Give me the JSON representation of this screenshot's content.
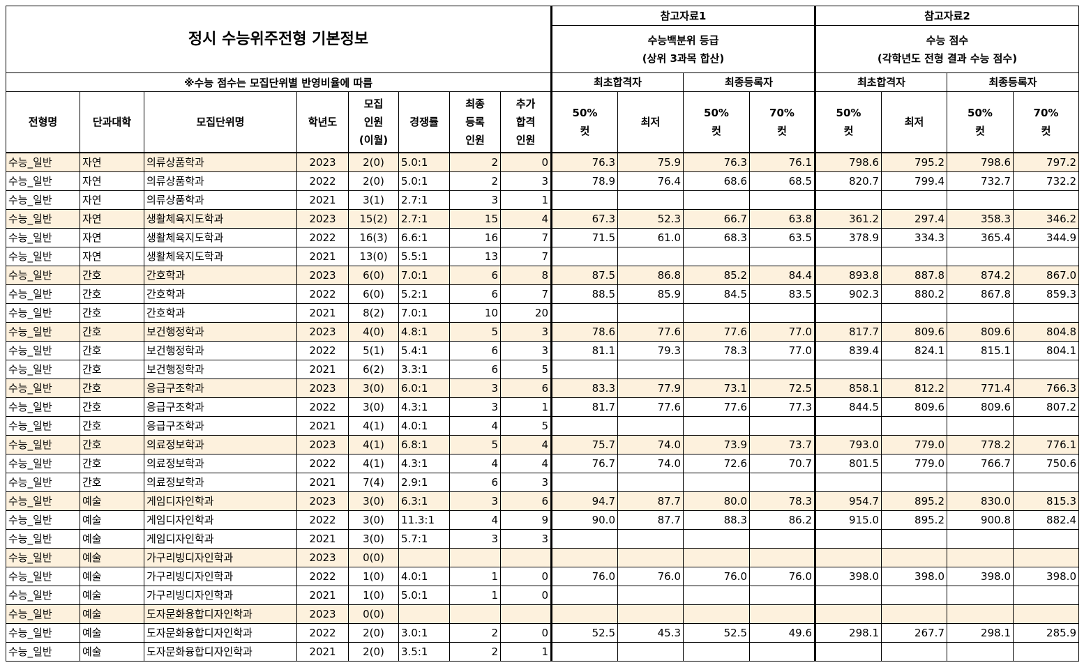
{
  "title": "정시 수능위주전형 기본정보",
  "note": "※수능 점수는 모집단위별 반영비율에 따름",
  "ref1": {
    "label": "참고자료1",
    "desc_line1": "수능백분위 등급",
    "desc_line2": "(상위 3과목 합산)"
  },
  "ref2": {
    "label": "참고자료2",
    "desc_line1": "수능 점수",
    "desc_line2": "(각학년도 전형 결과 수능 점수)"
  },
  "group": {
    "first": "최초합격자",
    "final": "최종등록자"
  },
  "columns": {
    "type": "전형명",
    "college": "단과대학",
    "unit": "모집단위명",
    "year": "학년도",
    "quota": [
      "모집",
      "인원",
      "(이월)"
    ],
    "rate": "경쟁률",
    "registered": [
      "최종",
      "등록",
      "인원"
    ],
    "added": [
      "추가",
      "합격",
      "인원"
    ],
    "cut50": [
      "50%",
      "컷"
    ],
    "min": "최저",
    "cut70": [
      "70%",
      "컷"
    ]
  },
  "rows": [
    {
      "hl": true,
      "cells": [
        "수능_일반",
        "자연",
        "의류상품학과",
        "2023",
        "2(0)",
        "5.0:1",
        "2",
        "0",
        "76.3",
        "75.9",
        "76.3",
        "76.1",
        "798.6",
        "795.2",
        "798.6",
        "797.2"
      ]
    },
    {
      "hl": false,
      "cells": [
        "수능_일반",
        "자연",
        "의류상품학과",
        "2022",
        "2(0)",
        "5.0:1",
        "2",
        "3",
        "78.9",
        "76.4",
        "68.6",
        "68.5",
        "820.7",
        "799.4",
        "732.7",
        "732.2"
      ]
    },
    {
      "hl": false,
      "cells": [
        "수능_일반",
        "자연",
        "의류상품학과",
        "2021",
        "3(1)",
        "2.7:1",
        "3",
        "1",
        "",
        "",
        "",
        "",
        "",
        "",
        "",
        ""
      ]
    },
    {
      "hl": true,
      "cells": [
        "수능_일반",
        "자연",
        "생활체육지도학과",
        "2023",
        "15(2)",
        "2.7:1",
        "15",
        "4",
        "67.3",
        "52.3",
        "66.7",
        "63.8",
        "361.2",
        "297.4",
        "358.3",
        "346.2"
      ]
    },
    {
      "hl": false,
      "cells": [
        "수능_일반",
        "자연",
        "생활체육지도학과",
        "2022",
        "16(3)",
        "6.6:1",
        "16",
        "7",
        "71.5",
        "61.0",
        "68.3",
        "63.5",
        "378.9",
        "334.3",
        "365.4",
        "344.9"
      ]
    },
    {
      "hl": false,
      "cells": [
        "수능_일반",
        "자연",
        "생활체육지도학과",
        "2021",
        "13(0)",
        "5.5:1",
        "13",
        "7",
        "",
        "",
        "",
        "",
        "",
        "",
        "",
        ""
      ]
    },
    {
      "hl": true,
      "cells": [
        "수능_일반",
        "간호",
        "간호학과",
        "2023",
        "6(0)",
        "7.0:1",
        "6",
        "8",
        "87.5",
        "86.8",
        "85.2",
        "84.4",
        "893.8",
        "887.8",
        "874.2",
        "867.0"
      ]
    },
    {
      "hl": false,
      "cells": [
        "수능_일반",
        "간호",
        "간호학과",
        "2022",
        "6(0)",
        "5.2:1",
        "6",
        "7",
        "88.5",
        "85.9",
        "84.5",
        "83.5",
        "902.3",
        "880.2",
        "867.8",
        "859.3"
      ]
    },
    {
      "hl": false,
      "cells": [
        "수능_일반",
        "간호",
        "간호학과",
        "2021",
        "8(2)",
        "7.0:1",
        "10",
        "20",
        "",
        "",
        "",
        "",
        "",
        "",
        "",
        ""
      ]
    },
    {
      "hl": true,
      "cells": [
        "수능_일반",
        "간호",
        "보건행정학과",
        "2023",
        "4(0)",
        "4.8:1",
        "5",
        "3",
        "78.6",
        "77.6",
        "77.6",
        "77.0",
        "817.7",
        "809.6",
        "809.6",
        "804.8"
      ]
    },
    {
      "hl": false,
      "cells": [
        "수능_일반",
        "간호",
        "보건행정학과",
        "2022",
        "5(1)",
        "5.4:1",
        "6",
        "3",
        "81.1",
        "79.3",
        "78.3",
        "77.0",
        "839.4",
        "824.1",
        "815.1",
        "804.1"
      ]
    },
    {
      "hl": false,
      "cells": [
        "수능_일반",
        "간호",
        "보건행정학과",
        "2021",
        "6(2)",
        "3.3:1",
        "6",
        "5",
        "",
        "",
        "",
        "",
        "",
        "",
        "",
        ""
      ]
    },
    {
      "hl": true,
      "cells": [
        "수능_일반",
        "간호",
        "응급구조학과",
        "2023",
        "3(0)",
        "6.0:1",
        "3",
        "6",
        "83.3",
        "77.9",
        "73.1",
        "72.5",
        "858.1",
        "812.2",
        "771.4",
        "766.3"
      ]
    },
    {
      "hl": false,
      "cells": [
        "수능_일반",
        "간호",
        "응급구조학과",
        "2022",
        "3(0)",
        "4.3:1",
        "3",
        "1",
        "81.7",
        "77.6",
        "77.6",
        "77.3",
        "844.5",
        "809.6",
        "809.6",
        "807.2"
      ]
    },
    {
      "hl": false,
      "cells": [
        "수능_일반",
        "간호",
        "응급구조학과",
        "2021",
        "4(1)",
        "4.0:1",
        "4",
        "5",
        "",
        "",
        "",
        "",
        "",
        "",
        "",
        ""
      ]
    },
    {
      "hl": true,
      "cells": [
        "수능_일반",
        "간호",
        "의료정보학과",
        "2023",
        "4(1)",
        "6.8:1",
        "5",
        "4",
        "75.7",
        "74.0",
        "73.9",
        "73.7",
        "793.0",
        "779.0",
        "778.2",
        "776.1"
      ]
    },
    {
      "hl": false,
      "cells": [
        "수능_일반",
        "간호",
        "의료정보학과",
        "2022",
        "4(1)",
        "4.3:1",
        "4",
        "4",
        "76.7",
        "74.0",
        "72.6",
        "70.7",
        "801.5",
        "779.0",
        "766.7",
        "750.6"
      ]
    },
    {
      "hl": false,
      "cells": [
        "수능_일반",
        "간호",
        "의료정보학과",
        "2021",
        "7(4)",
        "2.9:1",
        "6",
        "3",
        "",
        "",
        "",
        "",
        "",
        "",
        "",
        ""
      ]
    },
    {
      "hl": true,
      "cells": [
        "수능_일반",
        "예술",
        "게임디자인학과",
        "2023",
        "3(0)",
        "6.3:1",
        "3",
        "6",
        "94.7",
        "87.7",
        "80.0",
        "78.3",
        "954.7",
        "895.2",
        "830.0",
        "815.3"
      ]
    },
    {
      "hl": false,
      "cells": [
        "수능_일반",
        "예술",
        "게임디자인학과",
        "2022",
        "3(0)",
        "11.3:1",
        "4",
        "9",
        "90.0",
        "87.7",
        "88.3",
        "86.2",
        "915.0",
        "895.2",
        "900.8",
        "882.4"
      ]
    },
    {
      "hl": false,
      "cells": [
        "수능_일반",
        "예술",
        "게임디자인학과",
        "2021",
        "3(0)",
        "5.7:1",
        "3",
        "3",
        "",
        "",
        "",
        "",
        "",
        "",
        "",
        ""
      ]
    },
    {
      "hl": true,
      "cells": [
        "수능_일반",
        "예술",
        "가구리빙디자인학과",
        "2023",
        "0(0)",
        "",
        "",
        "",
        "",
        "",
        "",
        "",
        "",
        "",
        "",
        ""
      ]
    },
    {
      "hl": false,
      "cells": [
        "수능_일반",
        "예술",
        "가구리빙디자인학과",
        "2022",
        "1(0)",
        "4.0:1",
        "1",
        "0",
        "76.0",
        "76.0",
        "76.0",
        "76.0",
        "398.0",
        "398.0",
        "398.0",
        "398.0"
      ]
    },
    {
      "hl": false,
      "cells": [
        "수능_일반",
        "예술",
        "가구리빙디자인학과",
        "2021",
        "1(0)",
        "5.0:1",
        "1",
        "0",
        "",
        "",
        "",
        "",
        "",
        "",
        "",
        ""
      ]
    },
    {
      "hl": true,
      "cells": [
        "수능_일반",
        "예술",
        "도자문화융합디자인학과",
        "2023",
        "0(0)",
        "",
        "",
        "",
        "",
        "",
        "",
        "",
        "",
        "",
        "",
        ""
      ]
    },
    {
      "hl": false,
      "cells": [
        "수능_일반",
        "예술",
        "도자문화융합디자인학과",
        "2022",
        "2(0)",
        "3.0:1",
        "2",
        "0",
        "52.5",
        "45.3",
        "52.5",
        "49.6",
        "298.1",
        "267.7",
        "298.1",
        "285.9"
      ]
    },
    {
      "hl": false,
      "cells": [
        "수능_일반",
        "예술",
        "도자문화융합디자인학과",
        "2021",
        "2(0)",
        "3.5:1",
        "2",
        "1",
        "",
        "",
        "",
        "",
        "",
        "",
        "",
        ""
      ]
    }
  ]
}
